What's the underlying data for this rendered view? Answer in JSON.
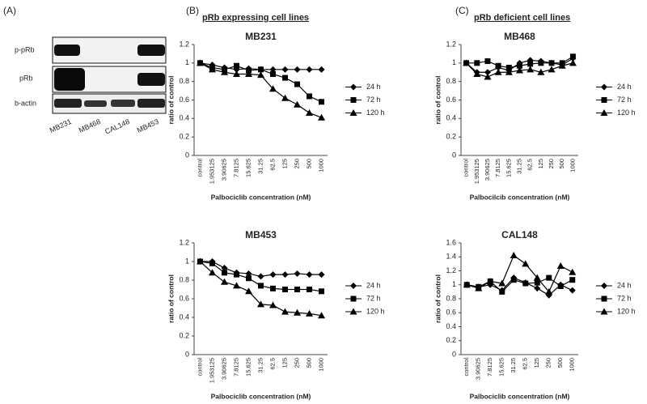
{
  "figure": {
    "panel_labels": [
      "(A)",
      "(B)",
      "(C)"
    ],
    "headers": [
      "pRb expressing cell lines",
      "pRb deficient cell lines"
    ],
    "blot": {
      "rows": [
        "p-pRb",
        "pRb",
        "b-actin"
      ],
      "lanes": [
        "MB231",
        "MB468",
        "CAL148",
        "MB453"
      ]
    }
  },
  "chart_data": [
    {
      "type": "line",
      "title": "MB231",
      "x_label": "Palbociclib concentration (nM)",
      "y_label": "ratio of control",
      "categories": [
        "control",
        "1.953125",
        "3.90625",
        "7.8125",
        "15.625",
        "31.25",
        "62.5",
        "125",
        "250",
        "500",
        "1000"
      ],
      "ylim": [
        0,
        1.2
      ],
      "yticks": [
        0,
        0.2,
        0.4,
        0.6,
        0.8,
        1,
        1.2
      ],
      "legend": "right",
      "series": [
        {
          "name": "24 h",
          "color": "#000000",
          "marker": "diamond",
          "values": [
            1,
            0.98,
            0.95,
            0.93,
            0.94,
            0.93,
            0.93,
            0.93,
            0.93,
            0.93,
            0.93
          ]
        },
        {
          "name": "72 h",
          "color": "#000000",
          "marker": "square",
          "values": [
            1,
            0.95,
            0.93,
            0.97,
            0.92,
            0.93,
            0.88,
            0.84,
            0.77,
            0.64,
            0.58
          ]
        },
        {
          "name": "120 h",
          "color": "#000000",
          "marker": "triangle",
          "values": [
            1,
            0.93,
            0.9,
            0.88,
            0.88,
            0.87,
            0.72,
            0.62,
            0.55,
            0.46,
            0.41
          ]
        }
      ]
    },
    {
      "type": "line",
      "title": "MB453",
      "x_label": "Palbociclib concentration (nM)",
      "y_label": "ratio of control",
      "categories": [
        "control",
        "1.953125",
        "3.90625",
        "7.8125",
        "15.625",
        "31.25",
        "62.5",
        "125",
        "250",
        "500",
        "1000"
      ],
      "ylim": [
        0,
        1.2
      ],
      "yticks": [
        0,
        0.2,
        0.4,
        0.6,
        0.8,
        1,
        1.2
      ],
      "legend": "right",
      "series": [
        {
          "name": "24 h",
          "color": "#000000",
          "marker": "diamond",
          "values": [
            1,
            1,
            0.93,
            0.88,
            0.87,
            0.84,
            0.86,
            0.86,
            0.87,
            0.86,
            0.86
          ]
        },
        {
          "name": "72 h",
          "color": "#000000",
          "marker": "square",
          "values": [
            1,
            0.98,
            0.88,
            0.86,
            0.82,
            0.74,
            0.71,
            0.7,
            0.7,
            0.7,
            0.68
          ]
        },
        {
          "name": "120 h",
          "color": "#000000",
          "marker": "triangle",
          "values": [
            1,
            0.88,
            0.78,
            0.74,
            0.68,
            0.54,
            0.53,
            0.46,
            0.45,
            0.44,
            0.42
          ]
        }
      ]
    },
    {
      "type": "line",
      "title": "MB468",
      "x_label": "Palbocilcib concentration (nM)",
      "y_label": "ratio of control",
      "categories": [
        "control",
        "1.953125",
        "3.90625",
        "7.8125",
        "15.625",
        "31.25",
        "62.5",
        "125",
        "250",
        "500",
        "1000"
      ],
      "ylim": [
        0,
        1.2
      ],
      "yticks": [
        0,
        0.2,
        0.4,
        0.6,
        0.8,
        1,
        1.2
      ],
      "legend": "right",
      "series": [
        {
          "name": "24 h",
          "color": "#000000",
          "marker": "diamond",
          "values": [
            1,
            0.9,
            0.9,
            0.95,
            0.92,
            1,
            1.03,
            1.02,
            1,
            0.98,
            1.05
          ]
        },
        {
          "name": "72 h",
          "color": "#000000",
          "marker": "square",
          "values": [
            1,
            1,
            1.02,
            0.97,
            0.95,
            0.97,
            0.99,
            1,
            1,
            1,
            1.07
          ]
        },
        {
          "name": "120 h",
          "color": "#000000",
          "marker": "triangle",
          "values": [
            1,
            0.88,
            0.85,
            0.9,
            0.9,
            0.92,
            0.93,
            0.9,
            0.93,
            0.97,
            1
          ]
        }
      ]
    },
    {
      "type": "line",
      "title": "CAL148",
      "x_label": "Palbociclib concentration (nM)",
      "y_label": "ratio of control",
      "categories": [
        "control",
        "3.90625",
        "7.8125",
        "15.625",
        "31.25",
        "62.5",
        "125",
        "250",
        "500",
        "1000"
      ],
      "ylim": [
        0,
        1.6
      ],
      "yticks": [
        0,
        0.2,
        0.4,
        0.6,
        0.8,
        1,
        1.2,
        1.4,
        1.6
      ],
      "legend": "right",
      "series": [
        {
          "name": "24 h",
          "color": "#000000",
          "marker": "diamond",
          "values": [
            1,
            0.97,
            1,
            0.92,
            1.1,
            1.03,
            0.95,
            0.85,
            1,
            0.92
          ]
        },
        {
          "name": "72 h",
          "color": "#000000",
          "marker": "square",
          "values": [
            1,
            0.97,
            1.05,
            0.9,
            1.07,
            1.02,
            1.03,
            1.1,
            0.98,
            1.07
          ]
        },
        {
          "name": "120 h",
          "color": "#000000",
          "marker": "triangle",
          "values": [
            1,
            0.95,
            1.05,
            1.02,
            1.42,
            1.3,
            1.1,
            0.9,
            1.27,
            1.18
          ]
        }
      ]
    }
  ]
}
